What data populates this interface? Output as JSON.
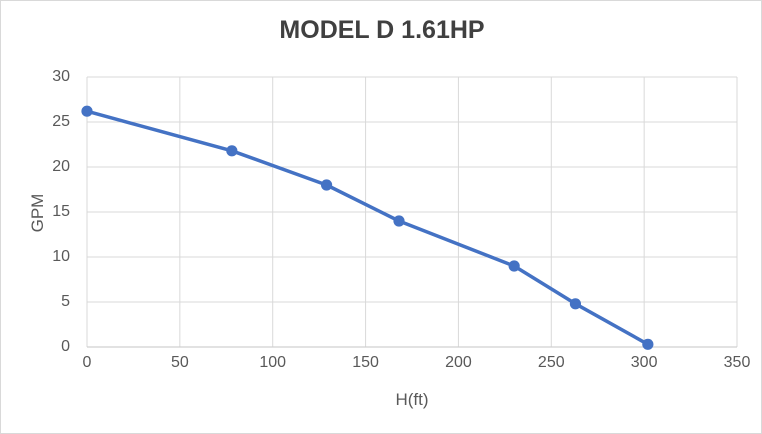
{
  "window": {
    "background": "#FFFFFF",
    "border_color": "#D9D9D9"
  },
  "colors": {
    "series_line": "#4472C4",
    "gridline": "#D9D9D9",
    "axis_line": "#D0D0D0",
    "tick_text": "#595959",
    "title_text": "#404040"
  },
  "chart_data": {
    "type": "line",
    "title": "MODEL D 1.61HP",
    "xlabel": "H(ft)",
    "ylabel": "GPM",
    "xlim": [
      0,
      350
    ],
    "ylim": [
      0,
      30
    ],
    "x_ticks": [
      0,
      50,
      100,
      150,
      200,
      250,
      300,
      350
    ],
    "y_ticks": [
      0,
      5,
      10,
      15,
      20,
      25,
      30
    ],
    "grid": true,
    "legend": "none",
    "series": [
      {
        "name": "MODEL D 1.61HP",
        "color": "#4472C4",
        "marker": "circle",
        "points": [
          {
            "x": 0,
            "y": 26.2
          },
          {
            "x": 78,
            "y": 21.8
          },
          {
            "x": 129,
            "y": 18.0
          },
          {
            "x": 168,
            "y": 14.0
          },
          {
            "x": 230,
            "y": 9.0
          },
          {
            "x": 263,
            "y": 4.8
          },
          {
            "x": 302,
            "y": 0.3
          }
        ]
      }
    ]
  }
}
